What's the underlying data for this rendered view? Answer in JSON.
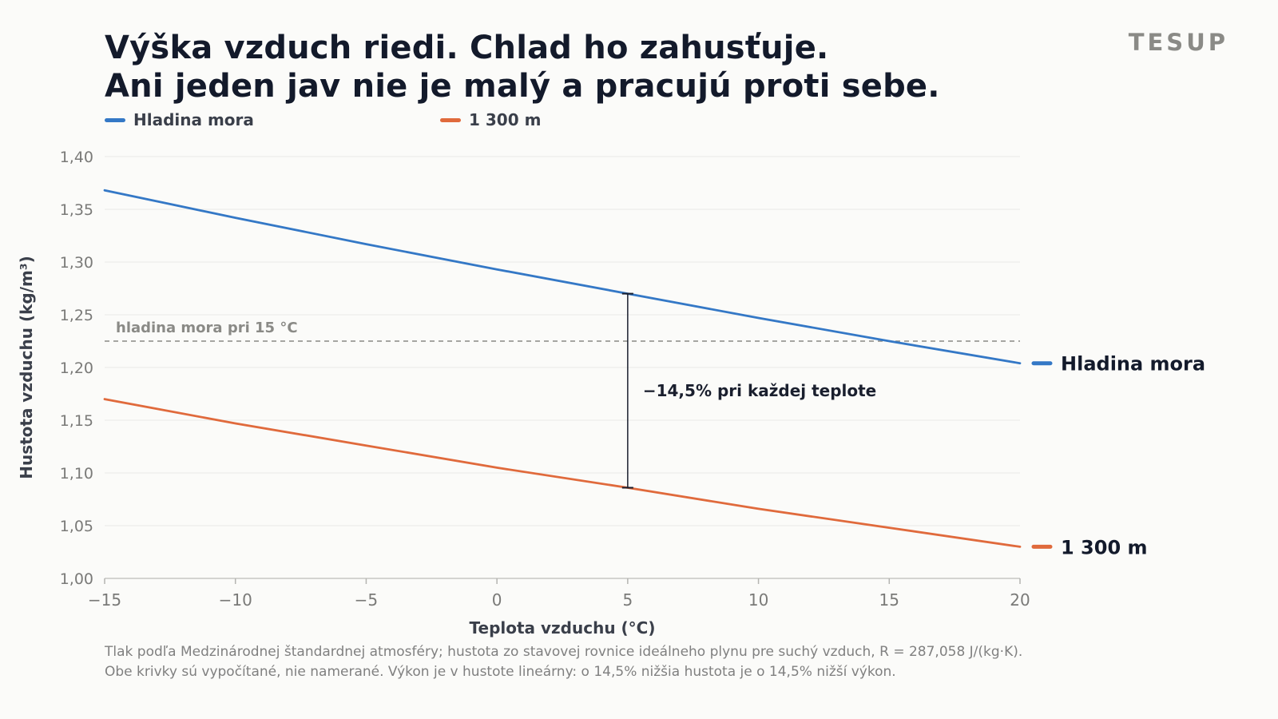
{
  "title_lines": [
    "Výška vzduch riedi. Chlad ho zahusťuje.",
    "Ani jeden jav nie je malý a pracujú proti sebe."
  ],
  "brand": "TESUP",
  "legend": [
    {
      "label": "Hladina mora",
      "color": "#3478c6"
    },
    {
      "label": "1 300 m",
      "color": "#e06a3c"
    }
  ],
  "footnote_lines": [
    "Tlak podľa Medzinárodnej štandardnej atmosféry; hustota zo stavovej rovnice ideálneho plynu pre suchý vzduch, R = 287,058 J/(kg·K).",
    "Obe krivky sú vypočítané, nie namerané. Výkon je v hustote lineárny: o 14,5% nižšia hustota je o 14,5% nižší výkon."
  ],
  "chart_data": {
    "type": "line",
    "xlabel": "Teplota vzduchu (°C)",
    "ylabel": "Hustota vzduchu (kg/m³)",
    "xlim": [
      -15,
      20
    ],
    "ylim": [
      1.0,
      1.4
    ],
    "xticks": [
      -15,
      -10,
      -5,
      0,
      5,
      10,
      15,
      20
    ],
    "xtick_labels": [
      "−15",
      "−10",
      "−5",
      "0",
      "5",
      "10",
      "15",
      "20"
    ],
    "yticks": [
      1.0,
      1.05,
      1.1,
      1.15,
      1.2,
      1.25,
      1.3,
      1.35,
      1.4
    ],
    "ytick_labels": [
      "1,00",
      "1,05",
      "1,10",
      "1,15",
      "1,20",
      "1,25",
      "1,30",
      "1,35",
      "1,40"
    ],
    "grid": "horizontal",
    "legend_position": "top-left",
    "series": [
      {
        "name": "Hladina mora",
        "color": "#3478c6",
        "x": [
          -15,
          -10,
          -5,
          0,
          5,
          10,
          15,
          20
        ],
        "y": [
          1.368,
          1.342,
          1.317,
          1.293,
          1.27,
          1.247,
          1.225,
          1.204
        ],
        "end_label": "Hladina mora"
      },
      {
        "name": "1 300 m",
        "color": "#e06a3c",
        "x": [
          -15,
          -10,
          -5,
          0,
          5,
          10,
          15,
          20
        ],
        "y": [
          1.17,
          1.147,
          1.126,
          1.105,
          1.086,
          1.066,
          1.048,
          1.03
        ],
        "end_label": "1 300 m"
      }
    ],
    "reference_line": {
      "y": 1.225,
      "label": "hladina mora pri 15 °C",
      "color": "#8a8a86"
    },
    "annotation": {
      "x": 5,
      "y_top": 1.27,
      "y_bottom": 1.086,
      "label": "−14,5% pri každej teplote",
      "color": "#1a1f2e"
    }
  }
}
